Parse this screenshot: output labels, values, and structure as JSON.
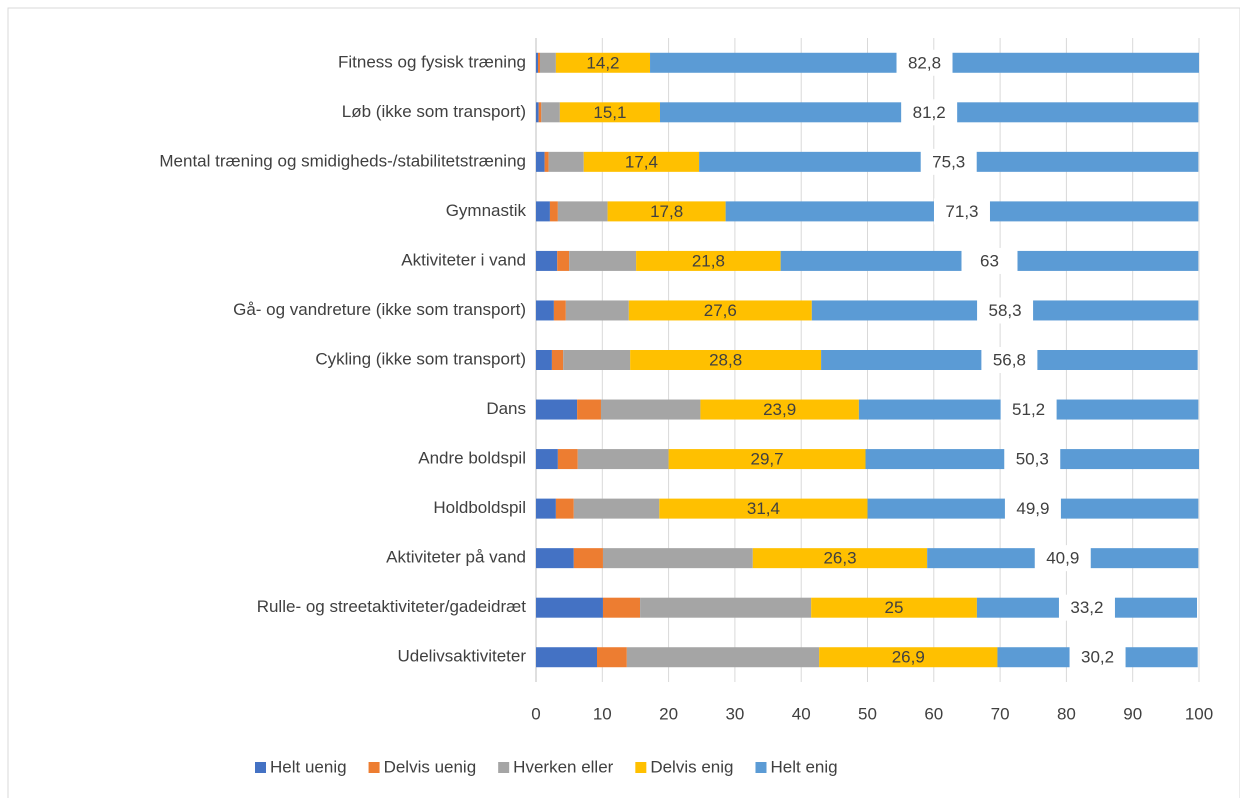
{
  "chart_data": {
    "type": "stacked-bar-horizontal",
    "categories": [
      "Fitness og fysisk træning",
      "Løb (ikke som transport)",
      "Mental træning og smidigheds-/stabilitetstræning",
      "Gymnastik",
      "Aktiviteter i vand",
      "Gå- og vandreture (ikke som transport)",
      "Cykling (ikke som transport)",
      "Dans",
      "Andre boldspil",
      "Holdboldspil",
      "Aktiviteter på vand",
      "Rulle- og streetaktiviteter/gadeidræt",
      "Udelivsaktiviteter"
    ],
    "series": [
      {
        "name": "Helt uenig",
        "color": "#4472c4",
        "values": [
          0.3,
          0.4,
          1.3,
          2.1,
          3.2,
          2.7,
          2.4,
          6.2,
          3.3,
          3.0,
          5.7,
          10.1,
          9.2
        ]
      },
      {
        "name": "Delvis uenig",
        "color": "#ed7d31",
        "values": [
          0.3,
          0.4,
          0.6,
          1.2,
          1.8,
          1.8,
          1.7,
          3.6,
          3.0,
          2.7,
          4.4,
          5.6,
          4.5
        ]
      },
      {
        "name": "Hverken eller",
        "color": "#a5a5a5",
        "values": [
          2.4,
          2.8,
          5.3,
          7.5,
          10.1,
          9.5,
          10.1,
          15.0,
          13.7,
          12.9,
          22.6,
          25.8,
          29.0
        ]
      },
      {
        "name": "Delvis enig",
        "color": "#ffc000",
        "values": [
          14.2,
          15.1,
          17.4,
          17.8,
          21.8,
          27.6,
          28.8,
          23.9,
          29.7,
          31.4,
          26.3,
          25,
          26.9
        ],
        "value_labels": [
          "14,2",
          "15,1",
          "17,4",
          "17,8",
          "21,8",
          "27,6",
          "28,8",
          "23,9",
          "29,7",
          "31,4",
          "26,3",
          "25",
          "26,9"
        ]
      },
      {
        "name": "Helt enig",
        "color": "#5b9bd5",
        "values": [
          82.8,
          81.2,
          75.3,
          71.3,
          63,
          58.3,
          56.8,
          51.2,
          50.3,
          49.9,
          40.9,
          33.2,
          30.2
        ],
        "value_labels": [
          "82,8",
          "81,2",
          "75,3",
          "71,3",
          "63",
          "58,3",
          "56,8",
          "51,2",
          "50,3",
          "49,9",
          "40,9",
          "33,2",
          "30,2"
        ]
      }
    ],
    "xlim": [
      0,
      100
    ],
    "xticks": [
      0,
      10,
      20,
      30,
      40,
      50,
      60,
      70,
      80,
      90,
      100
    ],
    "grid": true,
    "legend": "bottom"
  }
}
